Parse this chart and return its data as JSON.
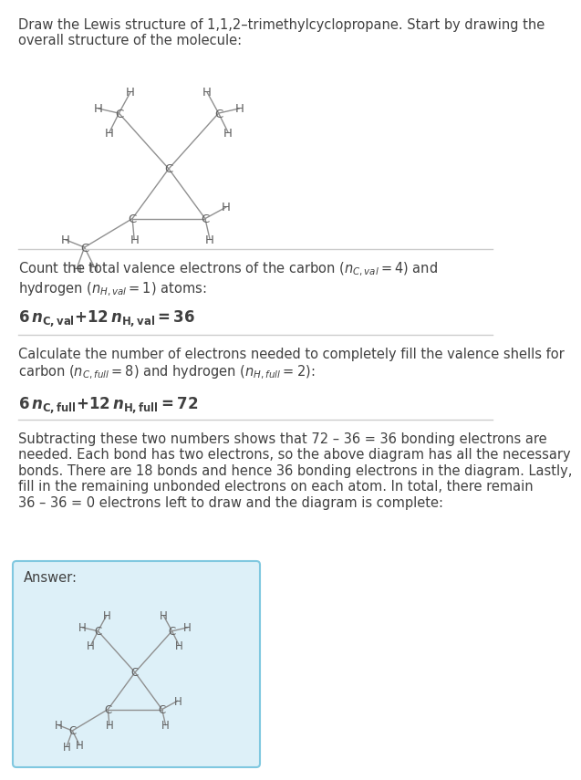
{
  "title_text": "Draw the Lewis structure of 1,1,2–trimethylcyclopropane. Start by drawing the\noverall structure of the molecule:",
  "section1_line1": "Count the total valence electrons of the carbon (",
  "section1_line2": "hydrogen (",
  "section2_line1": "Calculate the number of electrons needed to completely fill the valence shells for",
  "section2_line2": "carbon (",
  "section3_text": "Subtracting these two numbers shows that 72 – 36 = 36 bonding electrons are\nneeded. Each bond has two electrons, so the above diagram has all the necessary\nbonds. There are 18 bonds and hence 36 bonding electrons in the diagram. Lastly,\nfill in the remaining unbonded electrons on each atom. In total, there remain\n36 – 36 = 0 electrons left to draw and the diagram is complete:",
  "answer_label": "Answer:",
  "bg_color": "#ffffff",
  "text_color": "#404040",
  "line_color": "#cccccc",
  "answer_bg": "#ddf0f8",
  "answer_border": "#80c8e0",
  "atom_color": "#606060",
  "bond_color": "#909090"
}
